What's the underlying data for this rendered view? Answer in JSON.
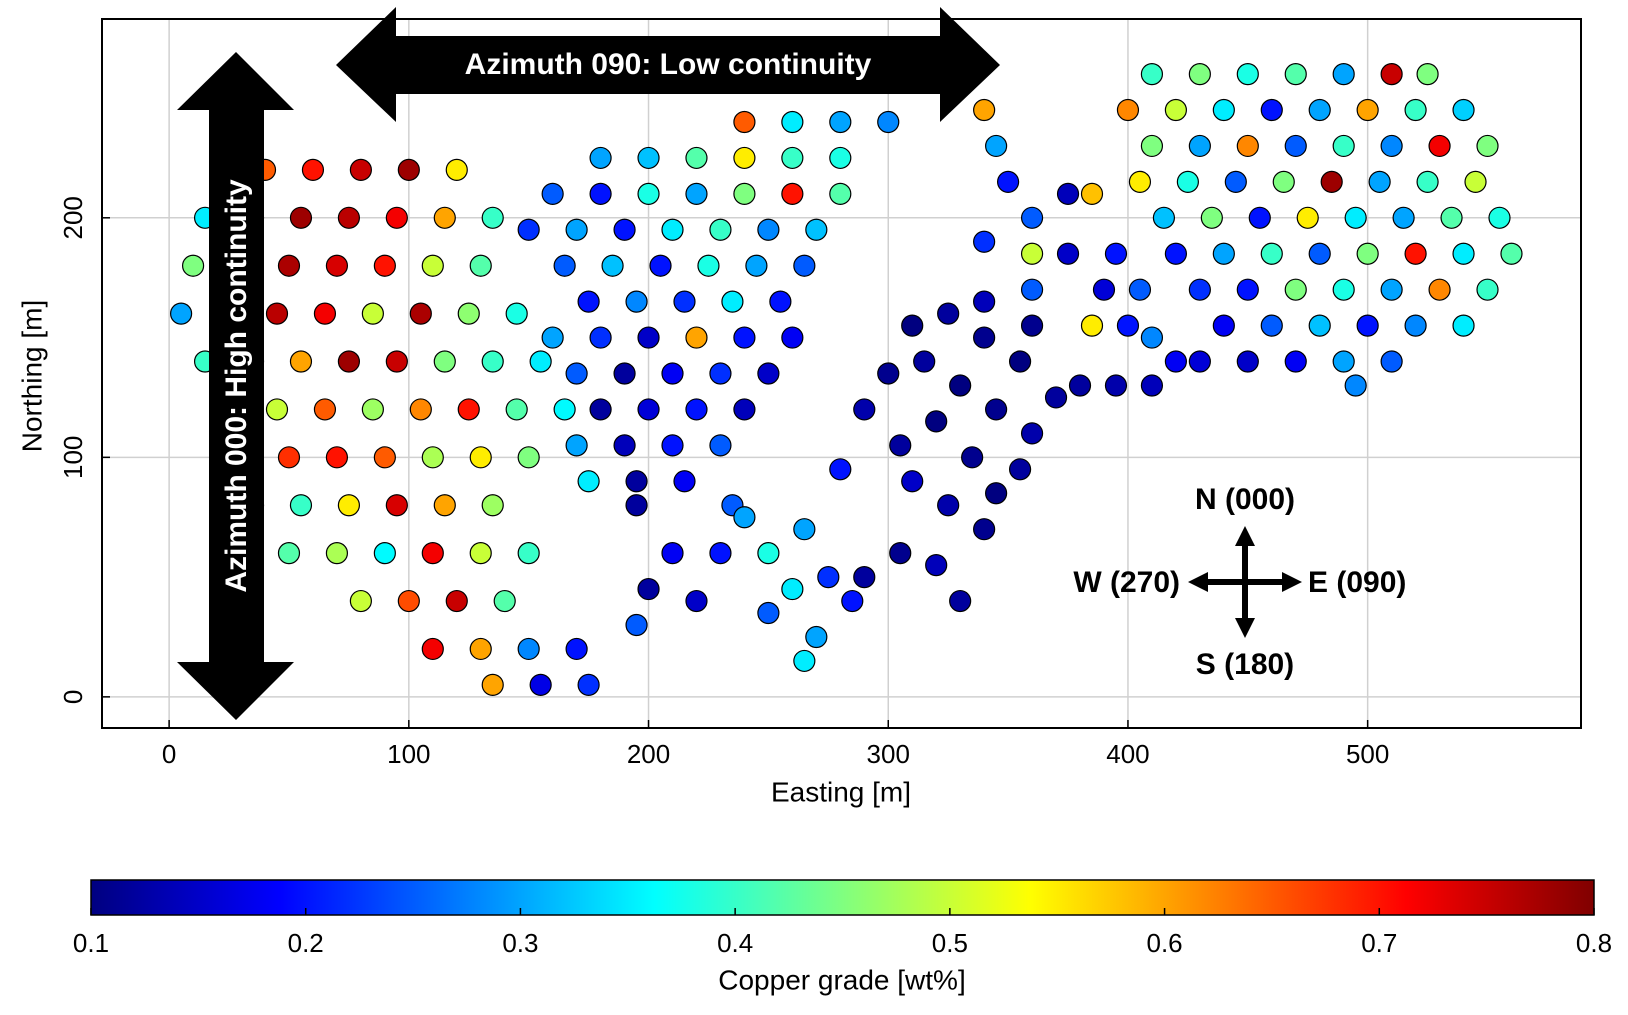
{
  "chart_data": {
    "type": "scatter",
    "x_label": "Easting [m]",
    "y_label": "Northing [m]",
    "colorbar_label": "Copper grade [wt%]",
    "colormap": "jet",
    "clim": [
      0.1,
      0.8
    ],
    "cticks": [
      0.1,
      0.2,
      0.3,
      0.4,
      0.5,
      0.6,
      0.7,
      0.8
    ],
    "xlim": [
      -28,
      589
    ],
    "ylim": [
      -13,
      283
    ],
    "xticks": [
      0,
      100,
      200,
      300,
      400,
      500
    ],
    "yticks": [
      0,
      100,
      200
    ],
    "grid": true,
    "annotations": {
      "horizontal_arrow": "Azimuth 090: Low continuity",
      "vertical_arrow": "Azimuth 000: High continuity",
      "north": "N (000)",
      "east": "E (090)",
      "south": "S (180)",
      "west": "W (270)"
    },
    "x": [
      40,
      60,
      80,
      100,
      120,
      15,
      35,
      55,
      75,
      95,
      115,
      135,
      10,
      30,
      50,
      70,
      90,
      110,
      130,
      5,
      25,
      45,
      65,
      85,
      105,
      125,
      145,
      15,
      35,
      55,
      75,
      95,
      115,
      135,
      155,
      25,
      45,
      65,
      85,
      105,
      125,
      145,
      165,
      30,
      50,
      70,
      90,
      110,
      130,
      150,
      35,
      55,
      75,
      95,
      115,
      135,
      50,
      70,
      90,
      110,
      130,
      150,
      80,
      100,
      120,
      140,
      110,
      130,
      150,
      170,
      135,
      155,
      175,
      240,
      260,
      280,
      300,
      180,
      200,
      220,
      240,
      260,
      280,
      160,
      180,
      200,
      220,
      240,
      260,
      280,
      150,
      170,
      190,
      210,
      230,
      250,
      270,
      165,
      185,
      205,
      225,
      245,
      265,
      175,
      195,
      215,
      235,
      255,
      160,
      180,
      200,
      220,
      240,
      260,
      170,
      190,
      210,
      230,
      250,
      180,
      200,
      220,
      240,
      170,
      190,
      210,
      230,
      175,
      195,
      215,
      195,
      235,
      200,
      220,
      210,
      230,
      240,
      195,
      250,
      265,
      260,
      275,
      250,
      270,
      285,
      265,
      290,
      305,
      320,
      330,
      340,
      345,
      355,
      335,
      320,
      305,
      290,
      280,
      300,
      315,
      330,
      345,
      360,
      370,
      355,
      340,
      325,
      340,
      310,
      380,
      395,
      360,
      310,
      325,
      340,
      345,
      350,
      360,
      340,
      360,
      375,
      385,
      375,
      395,
      390,
      405,
      400,
      410,
      385,
      420,
      360,
      410,
      430,
      450,
      470,
      490,
      510,
      525,
      400,
      420,
      440,
      460,
      480,
      500,
      520,
      540,
      410,
      430,
      450,
      470,
      490,
      510,
      530,
      550,
      405,
      425,
      445,
      465,
      485,
      505,
      525,
      545,
      415,
      435,
      455,
      475,
      495,
      515,
      535,
      555,
      420,
      440,
      460,
      480,
      500,
      520,
      540,
      560,
      430,
      450,
      470,
      490,
      510,
      530,
      550,
      440,
      460,
      480,
      500,
      520,
      540,
      450,
      470,
      490,
      510,
      430,
      410,
      495
    ],
    "y": [
      220,
      220,
      220,
      220,
      220,
      200,
      200,
      200,
      200,
      200,
      200,
      200,
      180,
      180,
      180,
      180,
      180,
      180,
      180,
      160,
      160,
      160,
      160,
      160,
      160,
      160,
      160,
      140,
      140,
      140,
      140,
      140,
      140,
      140,
      140,
      120,
      120,
      120,
      120,
      120,
      120,
      120,
      120,
      100,
      100,
      100,
      100,
      100,
      100,
      100,
      80,
      80,
      80,
      80,
      80,
      80,
      60,
      60,
      60,
      60,
      60,
      60,
      40,
      40,
      40,
      40,
      20,
      20,
      20,
      20,
      5,
      5,
      5,
      240,
      240,
      240,
      240,
      225,
      225,
      225,
      225,
      225,
      225,
      210,
      210,
      210,
      210,
      210,
      210,
      210,
      195,
      195,
      195,
      195,
      195,
      195,
      195,
      180,
      180,
      180,
      180,
      180,
      180,
      165,
      165,
      165,
      165,
      165,
      150,
      150,
      150,
      150,
      150,
      150,
      135,
      135,
      135,
      135,
      135,
      120,
      120,
      120,
      120,
      105,
      105,
      105,
      105,
      90,
      90,
      90,
      80,
      80,
      45,
      40,
      60,
      60,
      75,
      30,
      60,
      70,
      45,
      50,
      35,
      25,
      40,
      15,
      50,
      60,
      55,
      40,
      70,
      85,
      95,
      100,
      115,
      105,
      120,
      95,
      135,
      140,
      130,
      120,
      110,
      125,
      140,
      150,
      160,
      165,
      155,
      130,
      130,
      155,
      90,
      80,
      245,
      230,
      215,
      200,
      190,
      185,
      210,
      210,
      185,
      185,
      170,
      170,
      155,
      150,
      155,
      140,
      170,
      260,
      260,
      260,
      260,
      260,
      260,
      260,
      245,
      245,
      245,
      245,
      245,
      245,
      245,
      245,
      230,
      230,
      230,
      230,
      230,
      230,
      230,
      230,
      215,
      215,
      215,
      215,
      215,
      215,
      215,
      215,
      200,
      200,
      200,
      200,
      200,
      200,
      200,
      200,
      185,
      185,
      185,
      185,
      185,
      185,
      185,
      185,
      170,
      170,
      170,
      170,
      170,
      170,
      170,
      155,
      155,
      155,
      155,
      155,
      155,
      140,
      140,
      140,
      140,
      140,
      130,
      130
    ],
    "values": [
      0.65,
      0.7,
      0.75,
      0.78,
      0.55,
      0.35,
      0.7,
      0.78,
      0.76,
      0.72,
      0.6,
      0.4,
      0.45,
      0.62,
      0.77,
      0.74,
      0.7,
      0.5,
      0.42,
      0.3,
      0.7,
      0.76,
      0.72,
      0.5,
      0.77,
      0.46,
      0.38,
      0.4,
      0.72,
      0.6,
      0.78,
      0.75,
      0.45,
      0.4,
      0.35,
      0.55,
      0.5,
      0.65,
      0.47,
      0.62,
      0.7,
      0.42,
      0.36,
      0.6,
      0.68,
      0.7,
      0.65,
      0.48,
      0.55,
      0.45,
      0.45,
      0.4,
      0.55,
      0.74,
      0.6,
      0.47,
      0.42,
      0.48,
      0.36,
      0.72,
      0.5,
      0.4,
      0.5,
      0.66,
      0.75,
      0.42,
      0.72,
      0.6,
      0.28,
      0.2,
      0.6,
      0.17,
      0.22,
      0.65,
      0.35,
      0.3,
      0.28,
      0.3,
      0.32,
      0.42,
      0.55,
      0.4,
      0.38,
      0.25,
      0.2,
      0.38,
      0.3,
      0.45,
      0.7,
      0.42,
      0.22,
      0.3,
      0.2,
      0.35,
      0.4,
      0.28,
      0.32,
      0.25,
      0.32,
      0.2,
      0.38,
      0.3,
      0.25,
      0.2,
      0.28,
      0.22,
      0.35,
      0.2,
      0.3,
      0.22,
      0.15,
      0.6,
      0.2,
      0.18,
      0.25,
      0.12,
      0.18,
      0.22,
      0.15,
      0.12,
      0.16,
      0.2,
      0.14,
      0.3,
      0.14,
      0.2,
      0.25,
      0.35,
      0.12,
      0.18,
      0.12,
      0.25,
      0.12,
      0.15,
      0.18,
      0.2,
      0.3,
      0.25,
      0.38,
      0.3,
      0.35,
      0.22,
      0.25,
      0.3,
      0.2,
      0.35,
      0.12,
      0.11,
      0.14,
      0.12,
      0.11,
      0.1,
      0.12,
      0.11,
      0.1,
      0.12,
      0.13,
      0.2,
      0.11,
      0.12,
      0.1,
      0.11,
      0.13,
      0.12,
      0.1,
      0.11,
      0.12,
      0.14,
      0.1,
      0.12,
      0.13,
      0.11,
      0.15,
      0.13,
      0.6,
      0.3,
      0.2,
      0.25,
      0.22,
      0.5,
      0.14,
      0.58,
      0.15,
      0.2,
      0.16,
      0.25,
      0.2,
      0.28,
      0.55,
      0.18,
      0.25,
      0.4,
      0.45,
      0.38,
      0.42,
      0.3,
      0.75,
      0.45,
      0.62,
      0.5,
      0.35,
      0.2,
      0.3,
      0.6,
      0.4,
      0.33,
      0.45,
      0.3,
      0.62,
      0.25,
      0.4,
      0.28,
      0.72,
      0.45,
      0.55,
      0.38,
      0.25,
      0.45,
      0.78,
      0.3,
      0.4,
      0.5,
      0.32,
      0.45,
      0.2,
      0.55,
      0.35,
      0.3,
      0.42,
      0.38,
      0.2,
      0.3,
      0.4,
      0.25,
      0.45,
      0.7,
      0.35,
      0.42,
      0.22,
      0.2,
      0.45,
      0.38,
      0.3,
      0.62,
      0.4,
      0.18,
      0.25,
      0.32,
      0.2,
      0.28,
      0.35,
      0.15,
      0.18,
      0.3,
      0.25,
      0.16,
      0.14,
      0.28
    ]
  }
}
